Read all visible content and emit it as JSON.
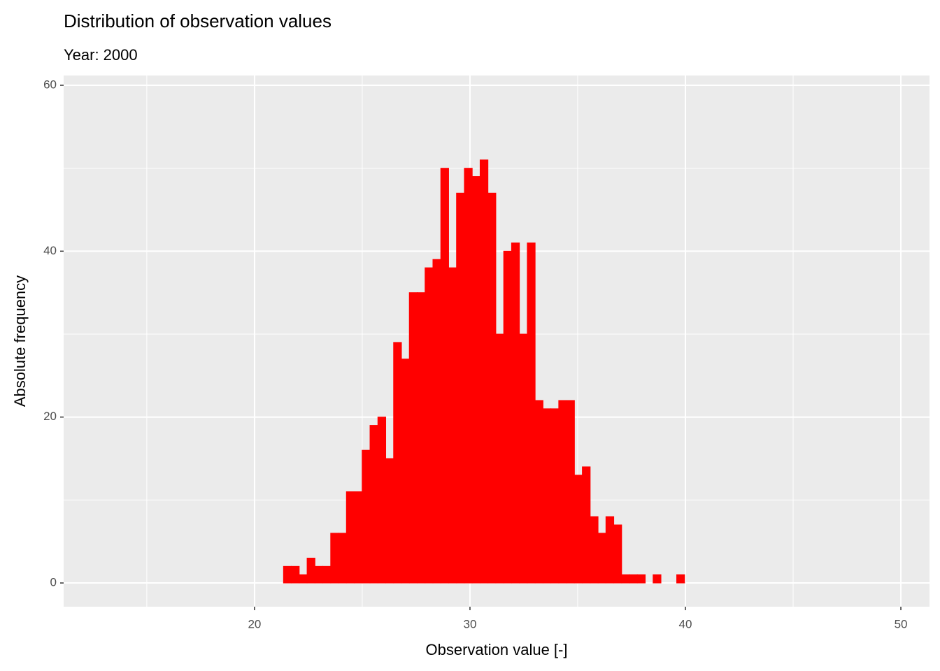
{
  "chart_data": {
    "type": "histogram",
    "title": "Distribution of observation values",
    "subtitle": "Year: 2000",
    "x_label": "Observation value [-]",
    "y_label": "Absolute frequency",
    "color": "#ff0000",
    "grid": true,
    "xlim": [
      11.14,
      51.33
    ],
    "ylim": [
      -2.86,
      61.18
    ],
    "xticks": [
      20,
      30,
      40,
      50
    ],
    "yticks": [
      0,
      20,
      40,
      60
    ],
    "bins": [
      12.95,
      13.315,
      13.68,
      14.045,
      14.41,
      14.775,
      15.14,
      15.505,
      15.87,
      16.235,
      16.6,
      16.965,
      17.33,
      17.695,
      18.06,
      18.425,
      18.79,
      19.155,
      19.52,
      19.885,
      20.25,
      20.615,
      20.98,
      21.345,
      21.71,
      22.075,
      22.44,
      22.805,
      23.17,
      23.535,
      23.9,
      24.265,
      24.63,
      24.995,
      25.36,
      25.725,
      26.09,
      26.455,
      26.82,
      27.185,
      27.55,
      27.915,
      28.28,
      28.645,
      29.01,
      29.375,
      29.74,
      30.105,
      30.47,
      30.835,
      31.2,
      31.565,
      31.93,
      32.295,
      32.66,
      33.025,
      33.39,
      33.755,
      34.12,
      34.485,
      34.85,
      35.215,
      35.58,
      35.945,
      36.31,
      36.675,
      37.04,
      37.405,
      37.77,
      38.135,
      38.5,
      38.865,
      39.23,
      39.595,
      39.96,
      40.325,
      40.69,
      41.055,
      41.42,
      41.785,
      42.15,
      42.515,
      42.88,
      43.245,
      43.61,
      43.975,
      44.34,
      44.705,
      45.07,
      45.435,
      45.8,
      46.165,
      46.53,
      46.895,
      47.26,
      47.625,
      47.99,
      48.355,
      48.72,
      49.085,
      49.45
    ],
    "values": [
      0,
      0,
      0,
      0,
      0,
      0,
      0,
      0,
      0,
      0,
      0,
      0,
      0,
      0,
      0,
      0,
      0,
      0,
      0,
      0,
      0,
      0,
      0,
      2,
      2,
      1,
      3,
      2,
      2,
      6,
      6,
      11,
      11,
      16,
      19,
      20,
      15,
      29,
      27,
      35,
      35,
      38,
      39,
      50,
      38,
      47,
      50,
      49,
      51,
      47,
      30,
      40,
      41,
      30,
      41,
      22,
      21,
      21,
      22,
      22,
      13,
      14,
      8,
      6,
      8,
      7,
      1,
      1,
      1,
      0,
      1,
      0,
      0,
      1,
      0,
      0,
      0,
      0,
      0,
      0,
      0,
      0,
      0,
      0,
      0,
      0,
      0,
      0,
      0,
      0,
      0,
      0,
      0,
      0,
      0,
      0,
      0,
      0,
      0,
      0
    ]
  }
}
